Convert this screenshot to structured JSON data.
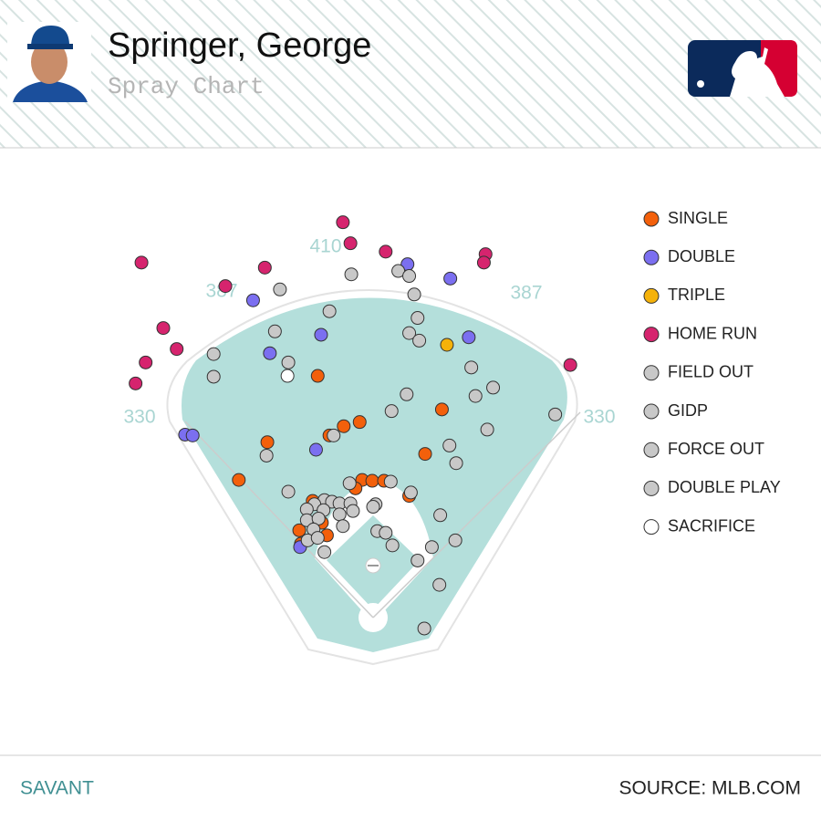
{
  "header": {
    "name": "Springer, George",
    "subtitle": "Spray Chart"
  },
  "footer": {
    "left": "SAVANT",
    "right": "SOURCE: MLB.COM"
  },
  "chart_data": {
    "type": "scatter",
    "field_labels": [
      "330",
      "387",
      "410",
      "387",
      "330"
    ],
    "xlim": [
      -300,
      300
    ],
    "ylim": [
      -30,
      480
    ],
    "series": [
      {
        "name": "SINGLE",
        "color": "#f3600b",
        "x": [
          -66,
          82,
          -16,
          -35,
          -52,
          -126,
          62,
          -160,
          -13,
          -1,
          13,
          -21,
          43,
          -72,
          -61,
          -88,
          -55,
          -86
        ],
        "y": [
          288,
          248,
          233,
          228,
          217,
          209,
          195,
          164,
          164,
          163,
          163,
          154,
          145,
          139,
          113,
          104,
          98,
          88
        ]
      },
      {
        "name": "DOUBLE",
        "color": "#7b6ff0",
        "x": [
          41,
          92,
          -143,
          -62,
          -123,
          114,
          -68,
          -224,
          -215,
          -87
        ],
        "y": [
          421,
          404,
          378,
          337,
          315,
          334,
          200,
          218,
          217,
          84
        ]
      },
      {
        "name": "TRIPLE",
        "color": "#f5b20a",
        "x": [
          88
        ],
        "y": [
          325
        ]
      },
      {
        "name": "HOME RUN",
        "color": "#d6246e",
        "x": [
          -36,
          -27,
          15,
          134,
          132,
          -276,
          -129,
          -176,
          -250,
          -234,
          -271,
          -283,
          235
        ],
        "y": [
          471,
          446,
          436,
          433,
          423,
          423,
          417,
          395,
          345,
          320,
          304,
          279,
          301
        ]
      },
      {
        "name": "FIELD OUT",
        "color": "#c8c8c8",
        "x": [
          -26,
          30,
          43,
          -111,
          49,
          -52,
          53,
          -117,
          43,
          55,
          -190,
          -101,
          117,
          -190,
          143,
          122,
          40,
          22,
          217,
          136,
          -47,
          91,
          -127,
          99,
          -101,
          -28,
          21,
          45,
          -58,
          -70,
          -49,
          -40,
          -27,
          -79,
          -59,
          -40,
          -24,
          3,
          0,
          80,
          -79,
          -65,
          -36,
          5,
          15,
          -71,
          -78,
          -66,
          23,
          98,
          70,
          53,
          -58,
          79,
          61
        ],
        "y": [
          409,
          413,
          407,
          391,
          385,
          365,
          357,
          341,
          339,
          330,
          314,
          304,
          298,
          287,
          274,
          264,
          266,
          246,
          242,
          224,
          217,
          205,
          193,
          184,
          150,
          160,
          162,
          149,
          140,
          135,
          138,
          136,
          136,
          129,
          128,
          123,
          127,
          135,
          132,
          122,
          116,
          118,
          109,
          103,
          101,
          105,
          92,
          95,
          86,
          92,
          84,
          68,
          78,
          39,
          -13
        ]
      },
      {
        "name": "GIDP",
        "color": "#c8c8c8",
        "x": [],
        "y": []
      },
      {
        "name": "FORCE OUT",
        "color": "#c8c8c8",
        "x": [],
        "y": []
      },
      {
        "name": "DOUBLE PLAY",
        "color": "#c8c8c8",
        "x": [],
        "y": []
      },
      {
        "name": "SACRIFICE",
        "color": "#ffffff",
        "x": [
          -102
        ],
        "y": [
          288
        ]
      }
    ]
  }
}
